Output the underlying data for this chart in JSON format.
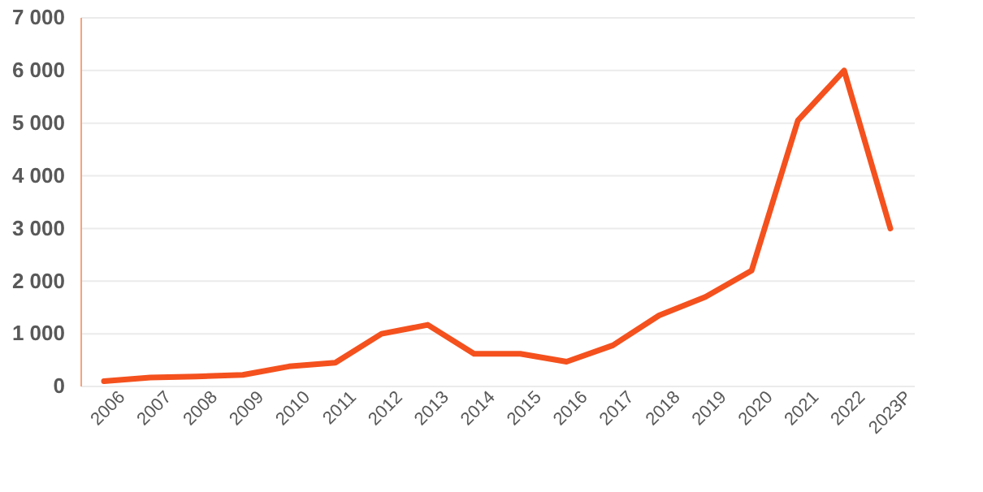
{
  "chart_data": {
    "type": "line",
    "categories": [
      "2006",
      "2007",
      "2008",
      "2009",
      "2010",
      "2011",
      "2012",
      "2013",
      "2014",
      "2015",
      "2016",
      "2017",
      "2018",
      "2019",
      "2020",
      "2021",
      "2022",
      "2023P"
    ],
    "series": [
      {
        "color": "#f4511e",
        "values": [
          100,
          170,
          190,
          220,
          380,
          450,
          1000,
          1170,
          620,
          620,
          470,
          780,
          1350,
          1700,
          2200,
          5050,
          6000,
          3000
        ]
      }
    ],
    "ylim": [
      0,
      7000
    ],
    "yticks": [
      {
        "value": 0,
        "label": "0"
      },
      {
        "value": 1000,
        "label": "1 000"
      },
      {
        "value": 2000,
        "label": "2 000"
      },
      {
        "value": 3000,
        "label": "3 000"
      },
      {
        "value": 4000,
        "label": "4 000"
      },
      {
        "value": 5000,
        "label": "5 000"
      },
      {
        "value": 6000,
        "label": "6 000"
      },
      {
        "value": 7000,
        "label": "7 000"
      }
    ],
    "grid": "y",
    "marker": "none",
    "line_style": "solid",
    "legend": false
  }
}
